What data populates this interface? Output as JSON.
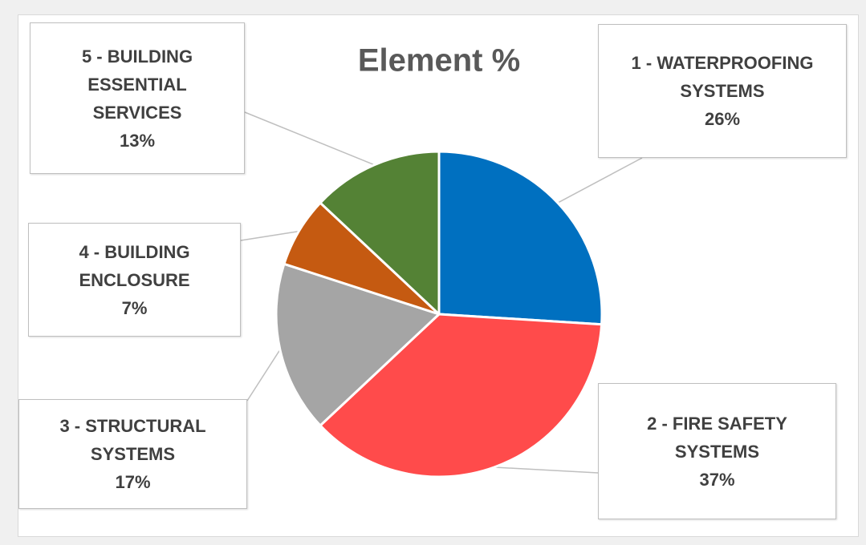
{
  "chart_data": {
    "type": "pie",
    "title": "Element %",
    "categories": [
      "1 - WATERPROOFING SYSTEMS",
      "2 - FIRE SAFETY SYSTEMS",
      "3 - STRUCTURAL SYSTEMS",
      "4 - BUILDING ENCLOSURE",
      "5 - BUILDING ESSENTIAL SERVICES"
    ],
    "values": [
      26,
      37,
      17,
      7,
      13
    ],
    "value_labels": [
      "26%",
      "37%",
      "17%",
      "7%",
      "13%"
    ],
    "colors": [
      "#0070c0",
      "#ff4b4b",
      "#a5a5a5",
      "#c55a11",
      "#548235"
    ]
  }
}
